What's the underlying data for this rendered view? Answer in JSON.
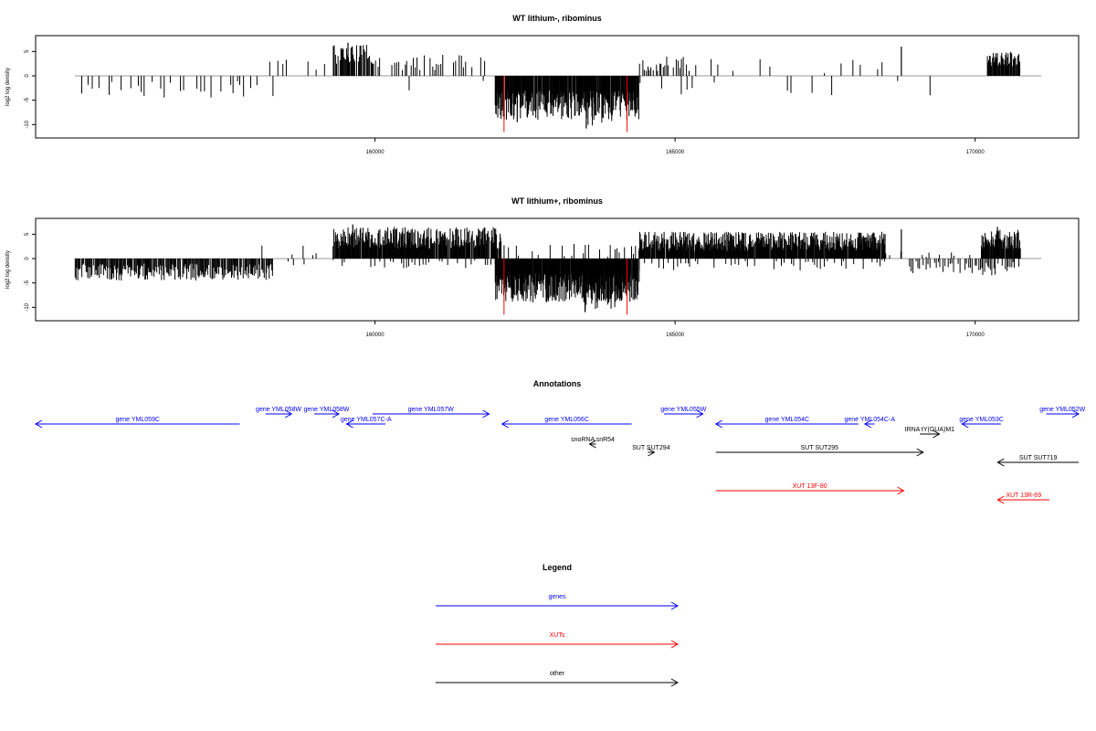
{
  "chart_data": [
    {
      "type": "bar",
      "title": "WT lithium-, ribominus",
      "ylabel": "log2 log density",
      "xlim": [
        155000,
        171100
      ],
      "ylim": [
        -12,
        7.5
      ],
      "x_ticks": [
        160000,
        165000,
        170000
      ],
      "y_ticks": [
        -10,
        -5,
        0,
        5
      ],
      "grid": false,
      "series": [
        {
          "strand": "minus",
          "start": 155050,
          "end": 158300,
          "amp_min": 1.0,
          "amp_max": 4.5,
          "step": 55,
          "density": 0.55
        },
        {
          "strand": "plus",
          "start": 158100,
          "end": 159200,
          "amp_min": 0.5,
          "amp_max": 3.5,
          "step": 70,
          "density": 0.45
        },
        {
          "strand": "minus",
          "start": 158300,
          "end": 159300,
          "amp_min": 0.5,
          "amp_max": 2.5,
          "step": 80,
          "density": 0.25
        },
        {
          "strand": "plus",
          "start": 159300,
          "end": 160000,
          "amp_min": 2.5,
          "amp_max": 6.5,
          "step": 14,
          "density": 0.9
        },
        {
          "strand": "plus",
          "start": 160000,
          "end": 162000,
          "amp_min": 1.0,
          "amp_max": 4.5,
          "step": 35,
          "density": 0.55
        },
        {
          "strand": "minus",
          "start": 160000,
          "end": 162000,
          "amp_min": 0.5,
          "amp_max": 3.5,
          "step": 90,
          "density": 0.15
        },
        {
          "strand": "minus",
          "start": 162000,
          "end": 164400,
          "amp_min": 3.0,
          "amp_max": 9.0,
          "step": 9,
          "density": 0.95
        },
        {
          "strand": "minus",
          "start": 163500,
          "end": 164000,
          "amp_min": 6.0,
          "amp_max": 10.5,
          "step": 12,
          "density": 0.5
        },
        {
          "strand": "plus",
          "start": 164400,
          "end": 165200,
          "amp_min": 1.0,
          "amp_max": 4.0,
          "step": 28,
          "density": 0.7
        },
        {
          "strand": "plus",
          "start": 165200,
          "end": 169800,
          "amp_min": 0.5,
          "amp_max": 3.5,
          "step": 120,
          "density": 0.35
        },
        {
          "strand": "minus",
          "start": 164400,
          "end": 169800,
          "amp_min": 0.5,
          "amp_max": 4.0,
          "step": 110,
          "density": 0.25
        },
        {
          "strand": "plus",
          "start": 170200,
          "end": 170750,
          "amp_min": 2.0,
          "amp_max": 5.0,
          "step": 12,
          "density": 0.95
        }
      ],
      "spikes": [
        {
          "x": 168770,
          "value": 6.0
        },
        {
          "x": 159550,
          "value": 6.8
        },
        {
          "x": 163520,
          "value": -10.8
        },
        {
          "x": 162370,
          "value": -9.5
        }
      ],
      "highlights": [
        {
          "x": 162150,
          "value": -11.5,
          "color": "#ff0000"
        },
        {
          "x": 164200,
          "value": -11.5,
          "color": "#ff0000"
        }
      ]
    },
    {
      "type": "bar",
      "title": "WT lithium+, ribominus",
      "ylabel": "log2 log density",
      "xlim": [
        155000,
        171100
      ],
      "ylim": [
        -12,
        7.5
      ],
      "x_ticks": [
        160000,
        165000,
        170000
      ],
      "y_ticks": [
        -10,
        -5,
        0,
        5
      ],
      "grid": false,
      "series": [
        {
          "strand": "minus",
          "start": 155000,
          "end": 158300,
          "amp_min": 1.0,
          "amp_max": 4.5,
          "step": 14,
          "density": 0.9
        },
        {
          "strand": "plus",
          "start": 158100,
          "end": 159300,
          "amp_min": 0.5,
          "amp_max": 3.0,
          "step": 70,
          "density": 0.4
        },
        {
          "strand": "minus",
          "start": 158300,
          "end": 159300,
          "amp_min": 0.5,
          "amp_max": 2.5,
          "step": 80,
          "density": 0.2
        },
        {
          "strand": "plus",
          "start": 159300,
          "end": 162100,
          "amp_min": 2.0,
          "amp_max": 6.5,
          "step": 10,
          "density": 0.95
        },
        {
          "strand": "minus",
          "start": 159300,
          "end": 162000,
          "amp_min": 0.3,
          "amp_max": 2.0,
          "step": 45,
          "density": 0.5
        },
        {
          "strand": "minus",
          "start": 162000,
          "end": 164400,
          "amp_min": 3.0,
          "amp_max": 9.0,
          "step": 8,
          "density": 0.95
        },
        {
          "strand": "minus",
          "start": 163500,
          "end": 164100,
          "amp_min": 6.0,
          "amp_max": 10.5,
          "step": 12,
          "density": 0.5
        },
        {
          "strand": "plus",
          "start": 162100,
          "end": 164400,
          "amp_min": 0.3,
          "amp_max": 3.0,
          "step": 40,
          "density": 0.45
        },
        {
          "strand": "plus",
          "start": 164400,
          "end": 168500,
          "amp_min": 1.5,
          "amp_max": 5.5,
          "step": 9,
          "density": 0.95
        },
        {
          "strand": "minus",
          "start": 164400,
          "end": 168500,
          "amp_min": 0.3,
          "amp_max": 2.5,
          "step": 40,
          "density": 0.5
        },
        {
          "strand": "plus",
          "start": 168500,
          "end": 170100,
          "amp_min": 0.3,
          "amp_max": 1.5,
          "step": 60,
          "density": 0.3
        },
        {
          "strand": "minus",
          "start": 168900,
          "end": 170100,
          "amp_min": 0.5,
          "amp_max": 3.0,
          "step": 28,
          "density": 0.7
        },
        {
          "strand": "plus",
          "start": 170100,
          "end": 170750,
          "amp_min": 2.0,
          "amp_max": 6.0,
          "step": 10,
          "density": 0.95
        },
        {
          "strand": "minus",
          "start": 170100,
          "end": 170750,
          "amp_min": 0.5,
          "amp_max": 3.5,
          "step": 25,
          "density": 0.7
        }
      ],
      "spikes": [
        {
          "x": 168770,
          "value": 6.0
        },
        {
          "x": 159630,
          "value": 7.0
        },
        {
          "x": 163500,
          "value": -11.0
        },
        {
          "x": 170370,
          "value": 6.5
        }
      ],
      "highlights": [
        {
          "x": 162150,
          "value": -11.5,
          "color": "#ff0000"
        },
        {
          "x": 164200,
          "value": -11.5,
          "color": "#ff0000"
        }
      ]
    }
  ],
  "annotations": {
    "title": "Annotations",
    "xlim": [
      155000,
      171100
    ],
    "features": [
      {
        "label": "gene YML059C",
        "start": 155000,
        "end": 158150,
        "row": 1,
        "strand": "-",
        "color": "#0000ff"
      },
      {
        "label": "gene YML058W",
        "start": 158550,
        "end": 158950,
        "row": 0,
        "strand": "+",
        "color": "#0000ff"
      },
      {
        "label": "gene YML058W",
        "start": 159300,
        "end": 159680,
        "row": 0,
        "strand": "+",
        "color": "#0000ff"
      },
      {
        "label": "gene YML057C-A",
        "start": 159800,
        "end": 160400,
        "row": 1,
        "strand": "-",
        "color": "#0000ff"
      },
      {
        "label": "gene YML057W",
        "start": 160200,
        "end": 162000,
        "row": 0,
        "strand": "+",
        "color": "#0000ff"
      },
      {
        "label": "gene YML056C",
        "start": 162200,
        "end": 164200,
        "row": 1,
        "strand": "-",
        "color": "#0000ff"
      },
      {
        "label": "gene YML055W",
        "start": 164700,
        "end": 165300,
        "row": 0,
        "strand": "+",
        "color": "#0000ff"
      },
      {
        "label": "gene YML054C",
        "start": 165500,
        "end": 167700,
        "row": 1,
        "strand": "-",
        "color": "#0000ff"
      },
      {
        "label": "gene YML054C-A",
        "start": 167800,
        "end": 167950,
        "row": 1,
        "strand": "-",
        "color": "#0000ff"
      },
      {
        "label": "gene YML053C",
        "start": 169300,
        "end": 169900,
        "row": 1,
        "strand": "-",
        "color": "#0000ff"
      },
      {
        "label": "gene YML052W",
        "start": 170600,
        "end": 171100,
        "row": 0,
        "strand": "+",
        "color": "#0000ff"
      },
      {
        "label": "tRNA tY(GUA)M1",
        "start": 168650,
        "end": 168950,
        "row": 2,
        "strand": "+",
        "color": "#000000"
      },
      {
        "label": "snoRNA snR54",
        "start": 163550,
        "end": 163650,
        "row": 3,
        "strand": "-",
        "color": "#000000"
      },
      {
        "label": "SUT SUT294",
        "start": 164450,
        "end": 164550,
        "row": 4,
        "strand": "+",
        "color": "#000000"
      },
      {
        "label": "SUT SUT295",
        "start": 165500,
        "end": 168700,
        "row": 4,
        "strand": "+",
        "color": "#000000"
      },
      {
        "label": "SUT SUT719",
        "start": 169850,
        "end": 171100,
        "row": 5,
        "strand": "-",
        "color": "#000000"
      },
      {
        "label": "XUT 13F-80",
        "start": 165500,
        "end": 168400,
        "row": 6,
        "strand": "+",
        "color": "#ff0000"
      },
      {
        "label": "XUT 13R-69",
        "start": 169850,
        "end": 170650,
        "row": 7,
        "strand": "-",
        "color": "#ff0000"
      }
    ]
  },
  "legend": {
    "title": "Legend",
    "items": [
      {
        "label": "genes",
        "color": "#0000ff"
      },
      {
        "label": "XUTs",
        "color": "#ff0000"
      },
      {
        "label": "other",
        "color": "#000000"
      }
    ]
  }
}
